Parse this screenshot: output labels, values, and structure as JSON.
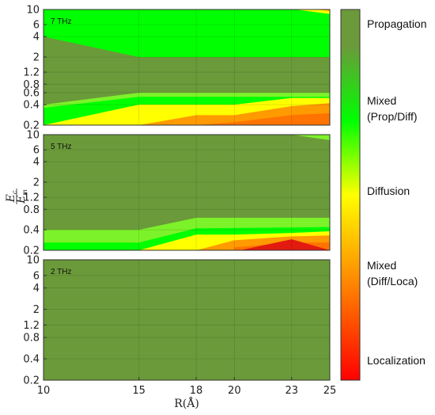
{
  "chart_data": {
    "type": "heatmap",
    "xlabel": "R(Å)",
    "ylabel": {
      "numerator": "E",
      "numerator_sub": "c",
      "denominator": "E",
      "denominator_sub": "m"
    },
    "x_ticks": [
      10,
      15,
      18,
      20,
      23,
      25
    ],
    "y_ticks": [
      "0.2",
      "0.4",
      "0.8",
      "1.2",
      "2",
      "4",
      "6",
      "10"
    ],
    "y_ticks_top": [
      "0.2",
      "0.4",
      "0.6",
      "0.8",
      "1.2",
      "2",
      "4",
      "6",
      "10"
    ],
    "y_scale": "log",
    "xlim": [
      10,
      25
    ],
    "ylim": [
      0.2,
      10
    ],
    "colorbar": {
      "labels": [
        "Propagation",
        "Mixed",
        "(Prop/Diff)",
        "Diffusion",
        "Mixed",
        "(Diff/Loca)",
        "Localization"
      ],
      "colors": [
        "#6b9a3a",
        "#00ff00",
        "#ffff00",
        "#ff8000",
        "#ff0000"
      ]
    },
    "panels": [
      {
        "label": "7 THz",
        "regions": [
          {
            "phase": "Propagation",
            "upper_boundary": [
              [
                10,
                4
              ],
              [
                15,
                2
              ],
              [
                18,
                2
              ],
              [
                20,
                2
              ],
              [
                23,
                2
              ],
              [
                25,
                2
              ]
            ],
            "lower_boundary": [
              [
                10,
                0.4
              ],
              [
                15,
                0.6
              ],
              [
                18,
                0.6
              ],
              [
                20,
                0.6
              ],
              [
                23,
                0.6
              ],
              [
                25,
                0.6
              ]
            ]
          },
          {
            "phase": "Mixed (Prop/Diff)",
            "region": "top and between 0.2-0.6"
          },
          {
            "phase": "Diffusion",
            "boundary": [
              [
                10,
                0.2
              ],
              [
                15,
                0.4
              ],
              [
                18,
                0.4
              ],
              [
                20,
                0.4
              ],
              [
                23,
                0.5
              ],
              [
                25,
                0.5
              ]
            ]
          },
          {
            "phase": "Mixed (Diff/Loca)",
            "boundary": [
              [
                15,
                0.2
              ],
              [
                18,
                0.27
              ],
              [
                20,
                0.27
              ],
              [
                23,
                0.36
              ],
              [
                25,
                0.4
              ]
            ]
          }
        ]
      },
      {
        "label": "5 THz",
        "regions": [
          {
            "phase": "Propagation",
            "lower_boundary": [
              [
                10,
                0.4
              ],
              [
                15,
                0.4
              ],
              [
                18,
                0.6
              ],
              [
                20,
                0.6
              ],
              [
                23,
                0.6
              ],
              [
                25,
                0.6
              ]
            ]
          },
          {
            "phase": "Mixed (Prop/Diff)",
            "boundary": [
              [
                10,
                0.26
              ],
              [
                15,
                0.26
              ],
              [
                18,
                0.42
              ],
              [
                20,
                0.42
              ],
              [
                23,
                0.44
              ],
              [
                25,
                0.44
              ]
            ]
          },
          {
            "phase": "Diffusion",
            "boundary": [
              [
                15,
                0.2
              ],
              [
                18,
                0.34
              ],
              [
                20,
                0.34
              ],
              [
                23,
                0.36
              ],
              [
                25,
                0.36
              ]
            ]
          },
          {
            "phase": "Mixed (Diff/Loca)",
            "boundary": [
              [
                18,
                0.2
              ],
              [
                20,
                0.28
              ],
              [
                23,
                0.3
              ],
              [
                25,
                0.3
              ]
            ]
          },
          {
            "phase": "Localization",
            "peak": [
              23,
              0.3
            ]
          }
        ]
      },
      {
        "label": "2 THz",
        "regions": [
          {
            "phase": "Propagation",
            "region": "entire domain"
          }
        ]
      }
    ]
  }
}
